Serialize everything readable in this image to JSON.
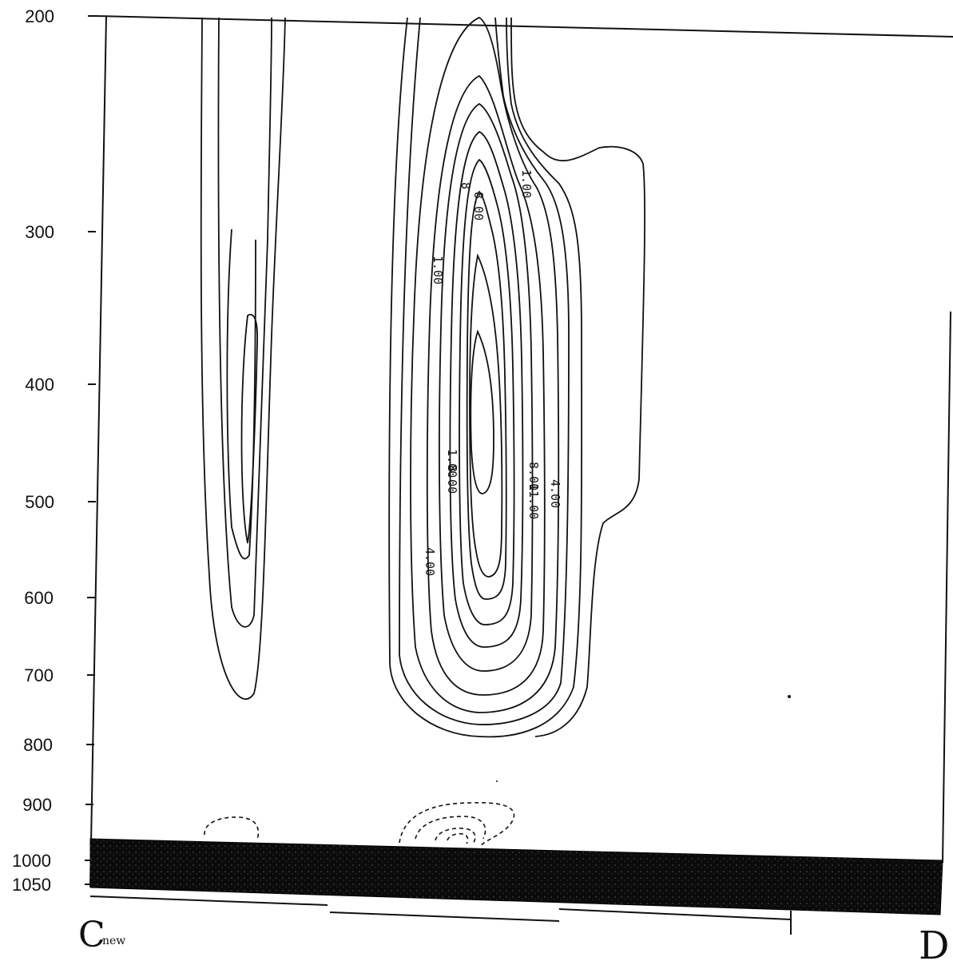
{
  "chart_data": {
    "type": "contour",
    "title": "",
    "xlabel": "",
    "ylabel": "",
    "y_axis_ticks": [
      "200",
      "300",
      "400",
      "500",
      "600",
      "700",
      "800",
      "900",
      "1000",
      "1050"
    ],
    "y_axis_orientation": "pressure increasing downward",
    "x_endpoints": {
      "left": "C",
      "left_subscript": "new",
      "right": "D"
    },
    "contour_labels": [
      "1.00",
      "8",
      "8.00",
      "1.00",
      "1.00",
      "8.00",
      "8.00",
      "11.00",
      "4.00",
      "4.00"
    ],
    "ground_shading": "stippled black band near 1000–1050",
    "negative_contours": "dashed, near surface",
    "grid": false,
    "legend": "none"
  }
}
